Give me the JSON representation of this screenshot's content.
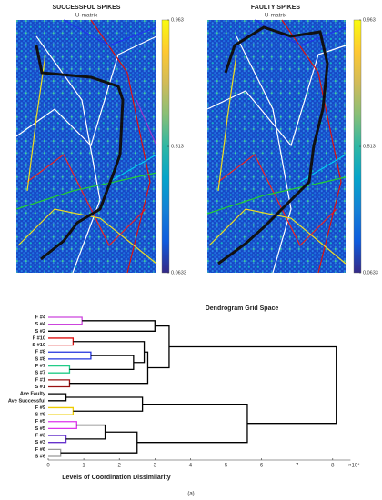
{
  "chart_data": [
    {
      "type": "heatmap",
      "title": "SUCCESSFUL SPIKES",
      "subtitle": "U-matrix",
      "clim": [
        0.0633,
        0.963
      ],
      "cticks": [
        0.963,
        0.513,
        0.0633
      ],
      "colormap": [
        "#352a87",
        "#0f5cdd",
        "#1481d6",
        "#06a4ca",
        "#2eb7a4",
        "#87bf77",
        "#d1bb59",
        "#fec832",
        "#f9fb0e"
      ]
    },
    {
      "type": "heatmap",
      "title": "FAULTY SPIKES",
      "subtitle": "U-matrix",
      "clim": [
        0.0633,
        0.963
      ],
      "cticks": [
        0.963,
        0.513,
        0.0633
      ],
      "colormap": [
        "#352a87",
        "#0f5cdd",
        "#1481d6",
        "#06a4ca",
        "#2eb7a4",
        "#87bf77",
        "#d1bb59",
        "#fec832",
        "#f9fb0e"
      ]
    },
    {
      "type": "dendrogram",
      "title": "Dendrogram Grid Space",
      "xlabel": "Levels of Coordination Dissimilarity",
      "xexponent": "×10⁴",
      "caption": "(a)",
      "leaves": [
        "F #4",
        "S #4",
        "S #2",
        "F #10",
        "S #10",
        "F #8",
        "S #8",
        "F #7",
        "S #7",
        "F #1",
        "S #1",
        "Ave Faulty",
        "Ave Successful",
        "F #9",
        "S #9",
        "F #5",
        "S #5",
        "F #3",
        "S #3",
        "F #6",
        "S #6"
      ],
      "merges": [
        {
          "left": 0,
          "right": 1,
          "height": 0.95,
          "color": "#cc44dd"
        },
        {
          "left": 21,
          "right": 2,
          "height": 3.0,
          "color": "#000000"
        },
        {
          "left": 3,
          "right": 4,
          "height": 0.7,
          "color": "#dd1111"
        },
        {
          "left": 5,
          "right": 6,
          "height": 1.2,
          "color": "#2233dd"
        },
        {
          "left": 7,
          "right": 8,
          "height": 0.6,
          "color": "#22cc88"
        },
        {
          "left": 24,
          "right": 25,
          "height": 2.4,
          "color": "#000000"
        },
        {
          "left": 23,
          "right": 26,
          "height": 2.7,
          "color": "#000000"
        },
        {
          "left": 9,
          "right": 10,
          "height": 0.6,
          "color": "#991111"
        },
        {
          "left": 27,
          "right": 28,
          "height": 2.8,
          "color": "#000000"
        },
        {
          "left": 22,
          "right": 29,
          "height": 3.4,
          "color": "#000000"
        },
        {
          "left": 11,
          "right": 12,
          "height": 0.5,
          "color": "#000000"
        },
        {
          "left": 13,
          "right": 14,
          "height": 0.7,
          "color": "#eecc00"
        },
        {
          "left": 31,
          "right": 32,
          "height": 2.65,
          "color": "#000000"
        },
        {
          "left": 15,
          "right": 16,
          "height": 0.8,
          "color": "#dd33ee"
        },
        {
          "left": 17,
          "right": 18,
          "height": 0.5,
          "color": "#6633cc"
        },
        {
          "left": 34,
          "right": 35,
          "height": 1.6,
          "color": "#000000"
        },
        {
          "left": 19,
          "right": 20,
          "height": 0.35,
          "color": "#999999"
        },
        {
          "left": 36,
          "right": 37,
          "height": 2.5,
          "color": "#000000"
        },
        {
          "left": 33,
          "right": 38,
          "height": 5.6,
          "color": "#000000"
        },
        {
          "left": 30,
          "right": 39,
          "height": 8.1,
          "color": "#000000"
        }
      ],
      "xlim": [
        0,
        8.5
      ],
      "xticks": [
        0,
        1,
        2,
        3,
        4,
        5,
        6,
        7,
        8
      ]
    }
  ]
}
